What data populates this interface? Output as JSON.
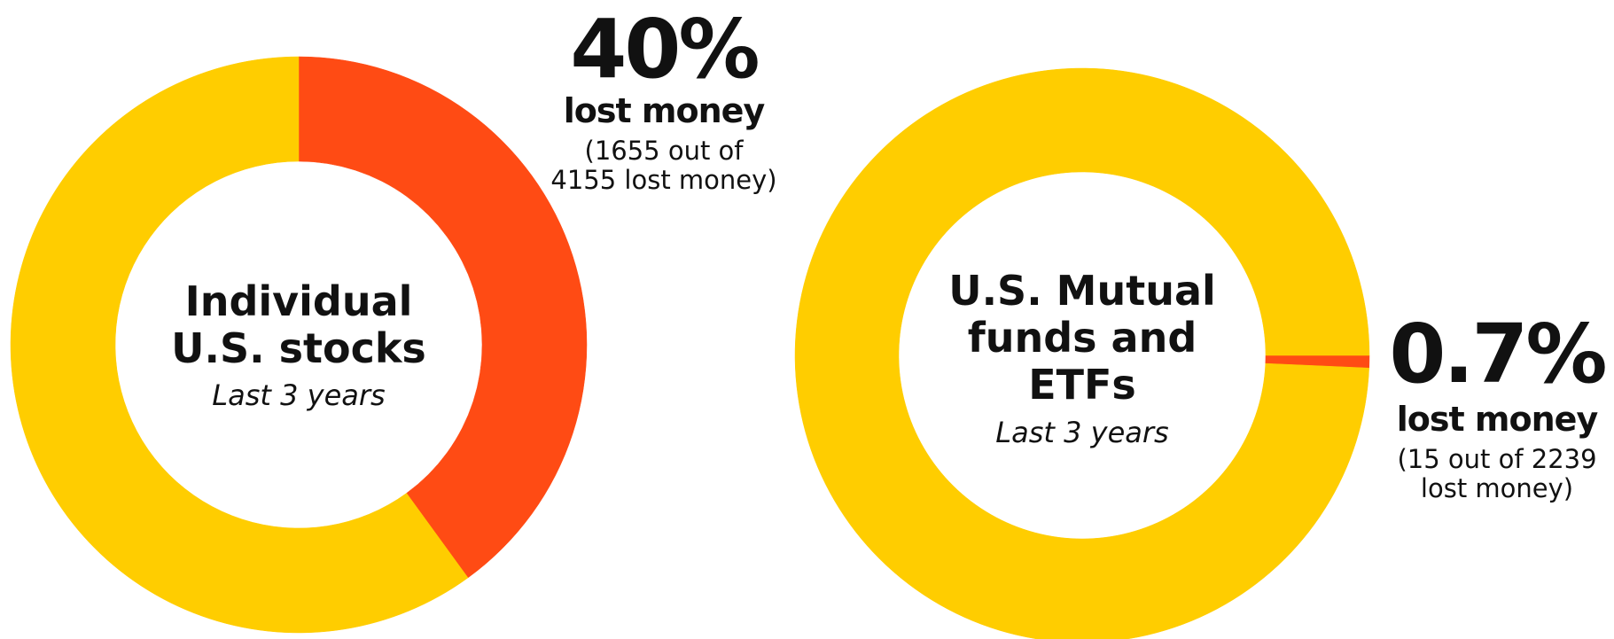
{
  "chart_data": [
    {
      "type": "pie",
      "donut": true,
      "title": "Individual U.S. stocks",
      "subtitle": "Last 3 years",
      "values": [
        40,
        60
      ],
      "value_labels": [
        "40%",
        null
      ],
      "colors": [
        "#ff4b14",
        "#ffcd00"
      ],
      "annotation": "lost money",
      "note": "(1655 out of 4155 lost money)"
    },
    {
      "type": "pie",
      "donut": true,
      "title": "U.S. Mutual funds and ETFs",
      "subtitle": "Last 3 years",
      "values": [
        0.7,
        99.3
      ],
      "value_labels": [
        "0.7%",
        null
      ],
      "colors": [
        "#ff4b14",
        "#ffcd00"
      ],
      "annotation": "lost money",
      "note": "(15 out of 2239 lost money)"
    }
  ]
}
